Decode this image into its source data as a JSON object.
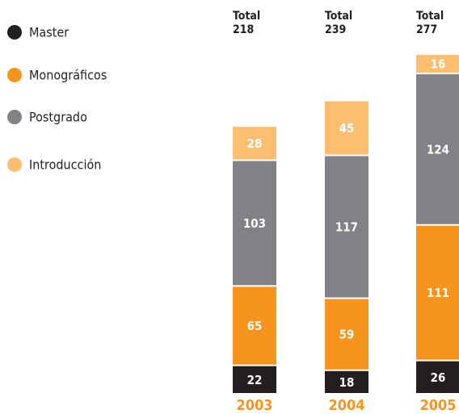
{
  "chart_data": {
    "type": "stacked_bar",
    "categories": [
      "2003",
      "2004",
      "2005"
    ],
    "total_label": "Total",
    "totals": [
      218,
      239,
      277
    ],
    "category_color": "#f7941d",
    "series": [
      {
        "name": "Master",
        "color": "#231f20",
        "values": [
          22,
          18,
          26
        ]
      },
      {
        "name": "Monográficos",
        "color": "#f7941d",
        "values": [
          65,
          59,
          111
        ]
      },
      {
        "name": "Postgrado",
        "color": "#808285",
        "values": [
          103,
          117,
          124
        ]
      },
      {
        "name": "Introducción",
        "color": "#fdbf6f",
        "values": [
          28,
          45,
          16
        ]
      }
    ]
  }
}
